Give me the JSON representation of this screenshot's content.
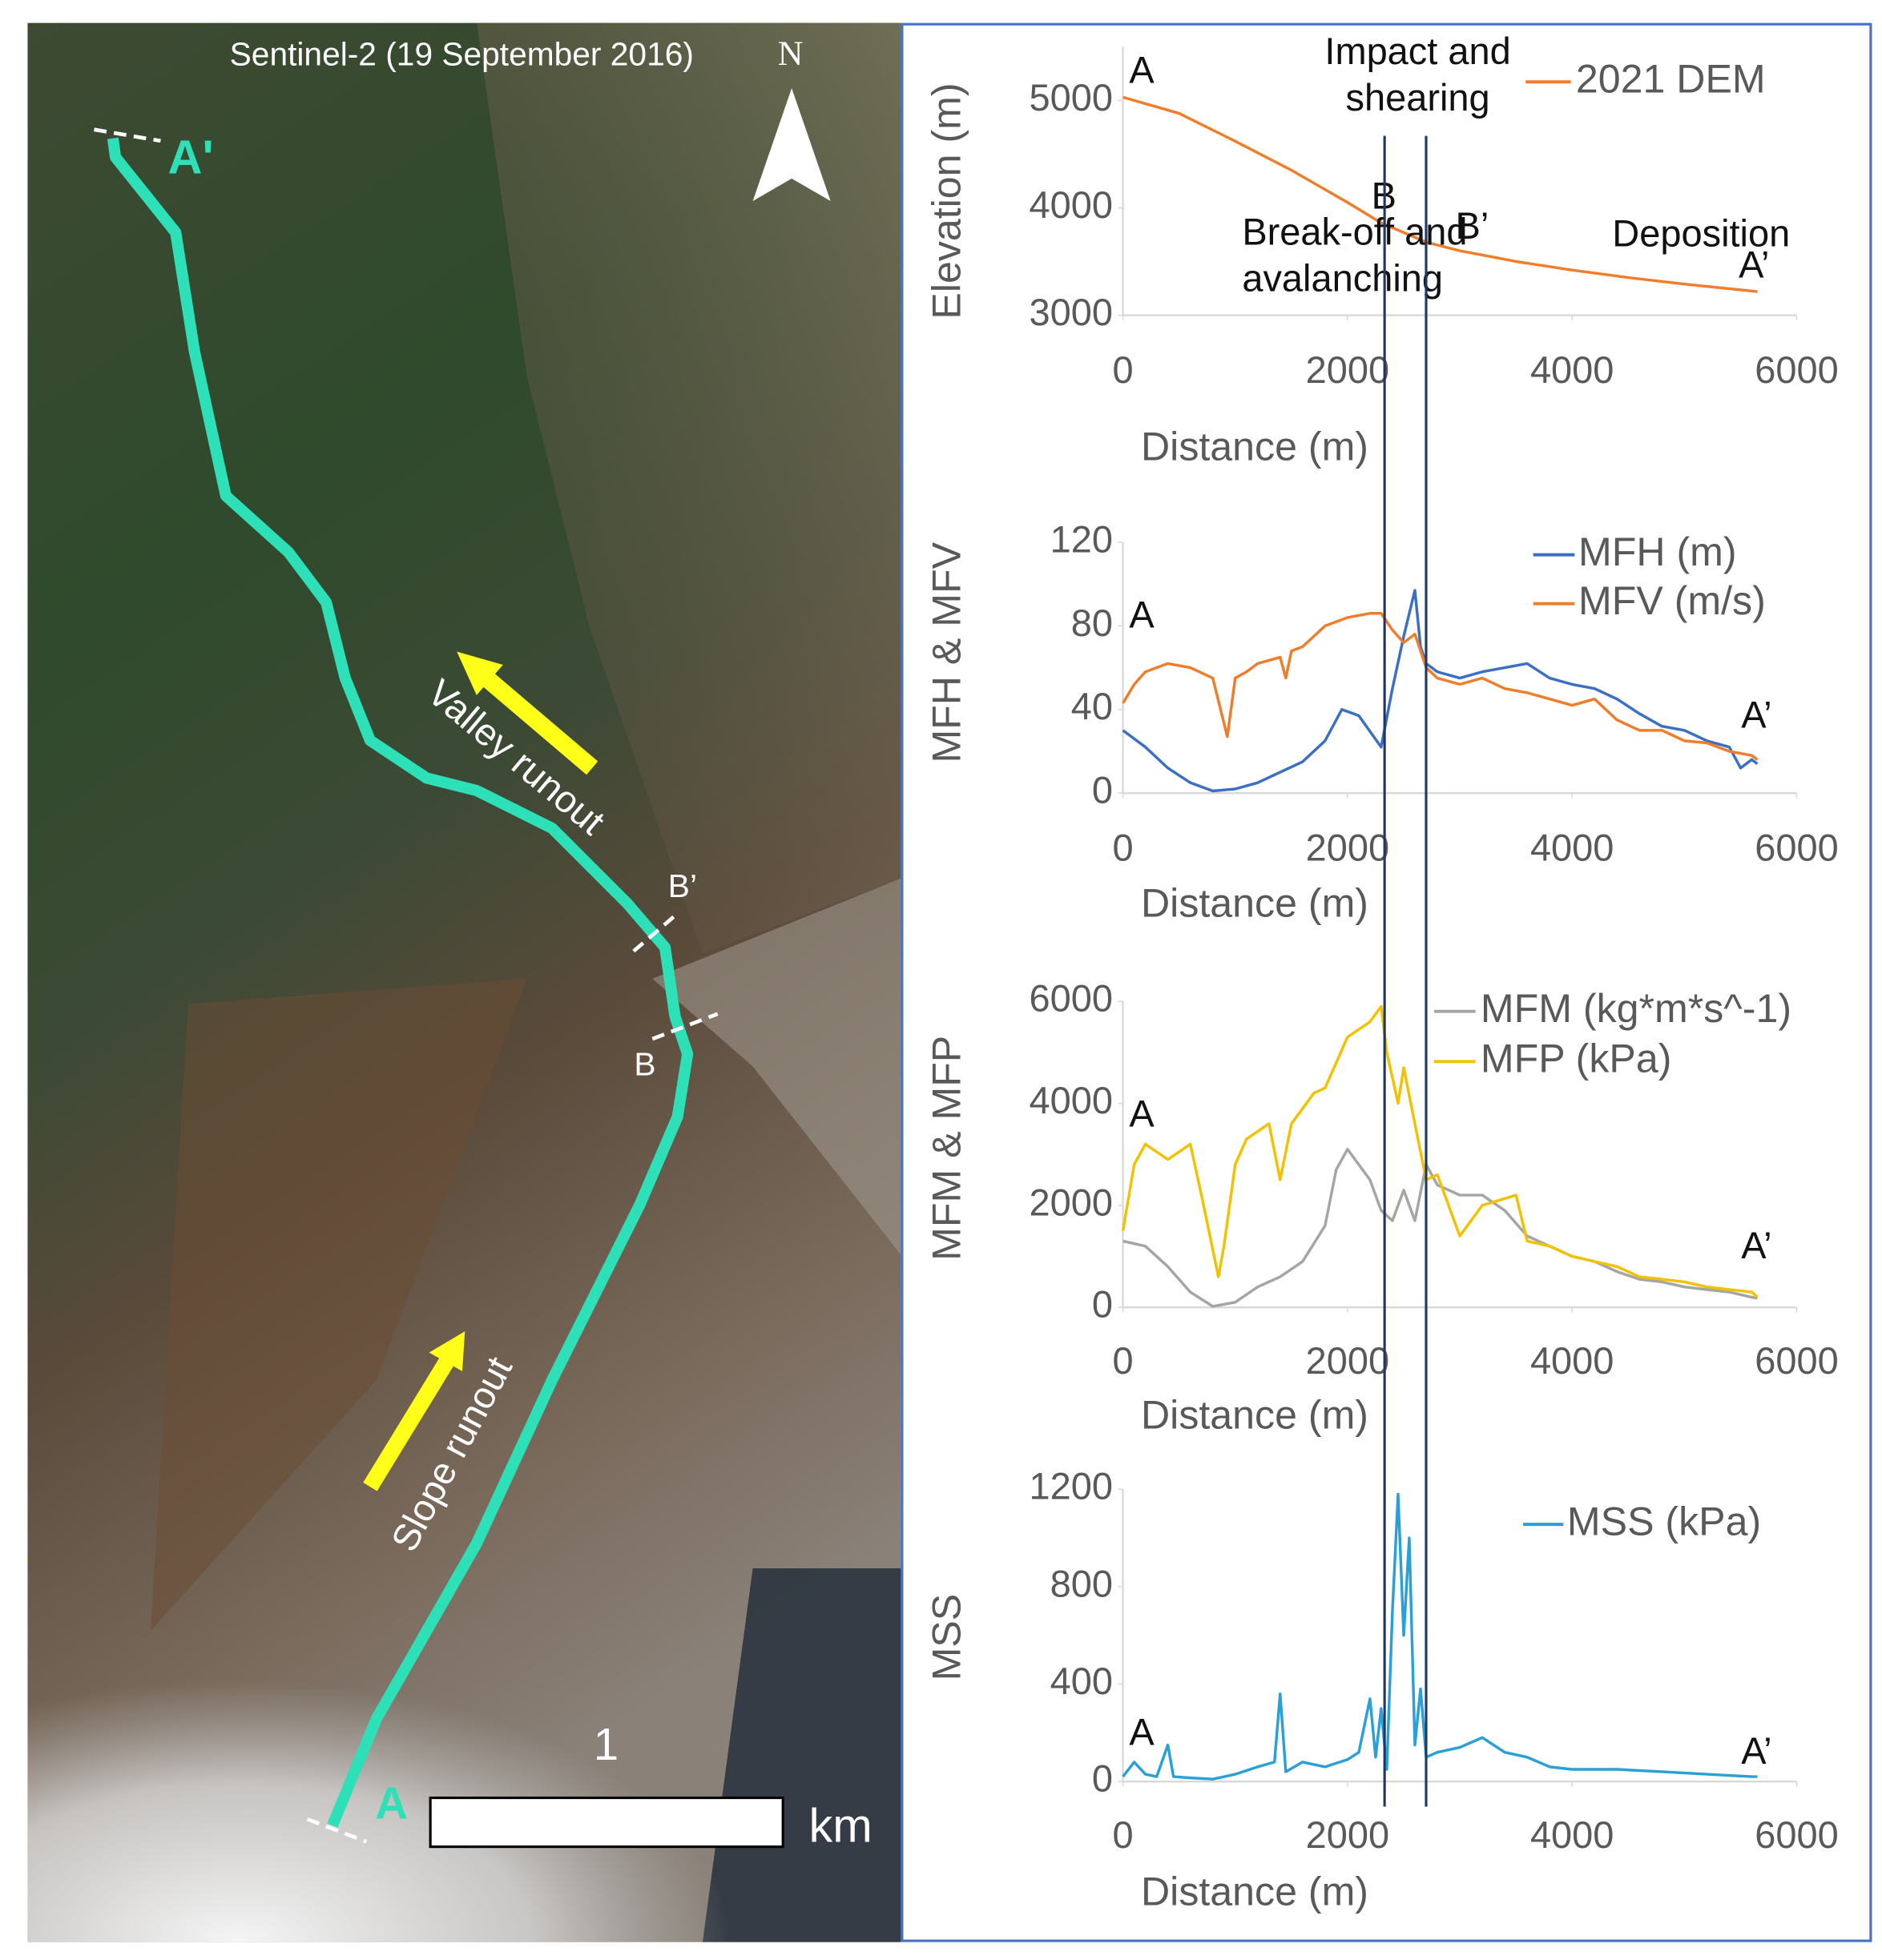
{
  "map": {
    "title": "Sentinel-2 (19 September 2016)",
    "north": "N",
    "end_label": "A'",
    "start_label": "A",
    "b_prime": "B’",
    "b": "B",
    "valley_label": "Valley runout",
    "slope_label": "Slope runout",
    "scale_value": "1",
    "scale_unit": "km"
  },
  "reference_lines_x": [
    2330,
    2700
  ],
  "chart_data": [
    {
      "type": "line",
      "x_label": "Distance (m)",
      "y_label": "Elevation (m)",
      "xlim": [
        0,
        6000
      ],
      "xticks": [
        0,
        2000,
        4000,
        6000
      ],
      "ylim": [
        3000,
        5500
      ],
      "yticks": [
        3000,
        4000,
        5000
      ],
      "annotations": [
        {
          "lines": [
            "A"
          ]
        },
        {
          "lines": [
            "Impact and",
            "shearing"
          ]
        },
        {
          "lines": [
            "B"
          ]
        },
        {
          "lines": [
            "Break-off and",
            "avalanching"
          ]
        },
        {
          "lines": [
            "B’"
          ]
        },
        {
          "lines": [
            "Deposition"
          ]
        },
        {
          "lines": [
            "A’"
          ]
        }
      ],
      "series": [
        {
          "name": "2021 DEM",
          "color": "#f07d2a",
          "x": [
            0,
            500,
            1000,
            1500,
            2000,
            2300,
            2700,
            3000,
            3500,
            4000,
            4500,
            5000,
            5650
          ],
          "values": [
            5030,
            4880,
            4620,
            4350,
            4050,
            3860,
            3680,
            3600,
            3500,
            3420,
            3350,
            3290,
            3220
          ]
        }
      ]
    },
    {
      "type": "line",
      "x_label": "Distance (m)",
      "y_label": "MFH & MFV",
      "xlim": [
        0,
        6000
      ],
      "xticks": [
        0,
        2000,
        4000,
        6000
      ],
      "ylim": [
        0,
        120
      ],
      "yticks": [
        0,
        40,
        80,
        120
      ],
      "annotations": [
        {
          "lines": [
            "A"
          ]
        },
        {
          "lines": [
            "A’"
          ]
        }
      ],
      "series": [
        {
          "name": "MFH (m)",
          "color": "#3a6fc4",
          "x": [
            0,
            200,
            400,
            600,
            800,
            1000,
            1200,
            1400,
            1600,
            1800,
            1950,
            2100,
            2300,
            2400,
            2500,
            2600,
            2650,
            2700,
            2800,
            3000,
            3200,
            3400,
            3600,
            3800,
            4000,
            4200,
            4400,
            4600,
            4800,
            5000,
            5200,
            5400,
            5500,
            5600,
            5650
          ],
          "values": [
            30,
            22,
            12,
            5,
            1,
            2,
            5,
            10,
            15,
            25,
            40,
            37,
            22,
            50,
            75,
            97,
            70,
            62,
            58,
            55,
            58,
            60,
            62,
            55,
            52,
            50,
            45,
            38,
            32,
            30,
            25,
            22,
            12,
            16,
            14
          ]
        },
        {
          "name": "MFV (m/s)",
          "color": "#f07d2a",
          "x": [
            0,
            100,
            200,
            400,
            600,
            800,
            930,
            1000,
            1100,
            1200,
            1400,
            1450,
            1500,
            1600,
            1800,
            2000,
            2200,
            2300,
            2400,
            2500,
            2600,
            2700,
            2800,
            3000,
            3200,
            3400,
            3600,
            3800,
            4000,
            4200,
            4400,
            4600,
            4800,
            5000,
            5200,
            5400,
            5600,
            5650
          ],
          "values": [
            43,
            52,
            58,
            62,
            60,
            55,
            27,
            55,
            58,
            62,
            65,
            55,
            68,
            70,
            80,
            84,
            86,
            86,
            78,
            72,
            76,
            60,
            55,
            52,
            55,
            50,
            48,
            45,
            42,
            45,
            35,
            30,
            30,
            25,
            24,
            20,
            18,
            16
          ]
        }
      ]
    },
    {
      "type": "line",
      "x_label": "Distance (m)",
      "y_label": "MFM & MFP",
      "xlim": [
        0,
        6000
      ],
      "xticks": [
        0,
        2000,
        4000,
        6000
      ],
      "ylim": [
        0,
        6000
      ],
      "yticks": [
        0,
        2000,
        4000,
        6000
      ],
      "annotations": [
        {
          "lines": [
            "A"
          ]
        },
        {
          "lines": [
            "A’"
          ]
        }
      ],
      "series": [
        {
          "name": "MFM (kg*m*s^-1)",
          "color": "#a5a5a5",
          "x": [
            0,
            200,
            400,
            600,
            800,
            1000,
            1200,
            1400,
            1600,
            1800,
            1900,
            2000,
            2200,
            2300,
            2400,
            2500,
            2600,
            2700,
            2800,
            3000,
            3200,
            3400,
            3600,
            3800,
            4000,
            4200,
            4400,
            4600,
            4800,
            5000,
            5200,
            5400,
            5600,
            5650
          ],
          "values": [
            1300,
            1200,
            800,
            300,
            20,
            100,
            400,
            600,
            900,
            1600,
            2700,
            3100,
            2500,
            1900,
            1700,
            2300,
            1700,
            2800,
            2400,
            2200,
            2200,
            1900,
            1400,
            1200,
            1000,
            900,
            700,
            550,
            500,
            400,
            350,
            300,
            200,
            180
          ]
        },
        {
          "name": "MFP (kPa)",
          "color": "#f2c200",
          "x": [
            0,
            100,
            200,
            400,
            600,
            700,
            850,
            900,
            1000,
            1100,
            1300,
            1400,
            1500,
            1700,
            1800,
            2000,
            2200,
            2300,
            2350,
            2450,
            2500,
            2600,
            2700,
            2800,
            3000,
            3200,
            3500,
            3600,
            3800,
            4000,
            4200,
            4400,
            4600,
            4800,
            5000,
            5200,
            5400,
            5600,
            5650
          ],
          "values": [
            1500,
            2800,
            3200,
            2900,
            3200,
            2200,
            600,
            1200,
            2800,
            3300,
            3600,
            2500,
            3600,
            4200,
            4300,
            5300,
            5600,
            5900,
            5000,
            4000,
            4700,
            3600,
            2500,
            2600,
            1400,
            2000,
            2200,
            1300,
            1200,
            1000,
            900,
            800,
            600,
            550,
            500,
            400,
            350,
            300,
            200
          ]
        }
      ]
    },
    {
      "type": "line",
      "x_label": "Distance (m)",
      "y_label": "MSS",
      "xlim": [
        0,
        6000
      ],
      "xticks": [
        0,
        2000,
        4000,
        6000
      ],
      "ylim": [
        0,
        1200
      ],
      "yticks": [
        0,
        400,
        800,
        1200
      ],
      "annotations": [
        {
          "lines": [
            "A"
          ]
        },
        {
          "lines": [
            "A’"
          ]
        }
      ],
      "series": [
        {
          "name": "MSS (kPa)",
          "color": "#2aa0d8",
          "x": [
            0,
            100,
            200,
            300,
            400,
            450,
            600,
            800,
            1000,
            1200,
            1350,
            1400,
            1450,
            1600,
            1800,
            2000,
            2100,
            2200,
            2250,
            2300,
            2350,
            2400,
            2450,
            2500,
            2550,
            2600,
            2650,
            2700,
            2800,
            3000,
            3200,
            3400,
            3600,
            3800,
            4000,
            4400,
            4800,
            5200,
            5600,
            5650
          ],
          "values": [
            20,
            80,
            30,
            20,
            150,
            20,
            15,
            10,
            30,
            60,
            80,
            360,
            40,
            80,
            60,
            90,
            120,
            340,
            100,
            300,
            50,
            700,
            1180,
            600,
            1000,
            150,
            380,
            100,
            120,
            140,
            180,
            120,
            100,
            60,
            50,
            50,
            40,
            30,
            20,
            20
          ]
        }
      ]
    }
  ]
}
